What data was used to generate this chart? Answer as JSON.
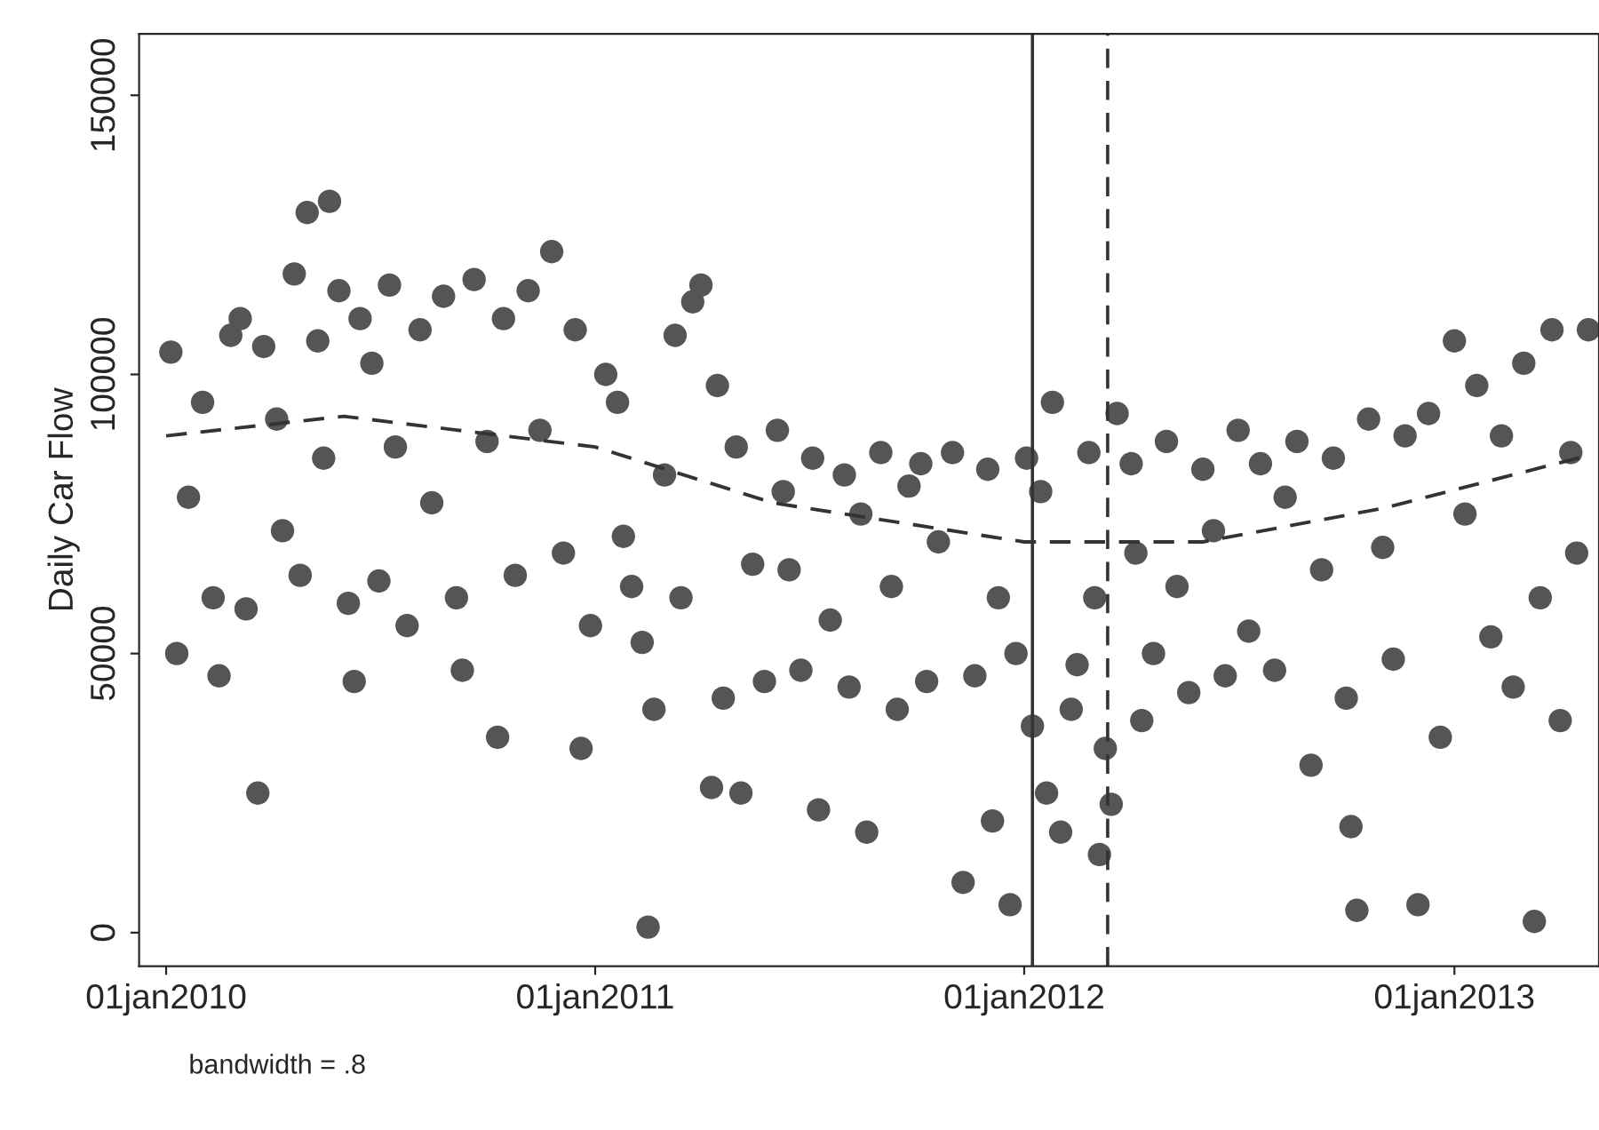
{
  "chart_data": {
    "type": "scatter",
    "ylabel": "Daily Car Flow",
    "annotations": [
      "bandwidth = .8"
    ],
    "xlim": [
      "2009-12-09",
      "2013-05-04"
    ],
    "ylim": [
      -6000,
      161000
    ],
    "xticks": [
      {
        "value": "2010-01-01",
        "label": "01jan2010"
      },
      {
        "value": "2011-01-01",
        "label": "01jan2011"
      },
      {
        "value": "2012-01-01",
        "label": "01jan2012"
      },
      {
        "value": "2013-01-01",
        "label": "01jan2013"
      }
    ],
    "yticks": [
      0,
      50000,
      100000,
      150000
    ],
    "grid": false,
    "legend": false,
    "ref_lines": [
      {
        "axis": "x",
        "value": "2012-01-08",
        "label": null,
        "color": "#333333",
        "line_style": "solid"
      },
      {
        "axis": "x",
        "value": "2012-03-12",
        "label": null,
        "color": "#333333",
        "line_style": "dashed"
      }
    ],
    "series": [
      {
        "color": "#555555",
        "marker": "circle",
        "x": [
          "2010-01-05",
          "2010-01-10",
          "2010-01-20",
          "2010-02-01",
          "2010-02-10",
          "2010-02-15",
          "2010-02-25",
          "2010-03-05",
          "2010-03-10",
          "2010-03-20",
          "2010-03-25",
          "2010-04-05",
          "2010-04-10",
          "2010-04-20",
          "2010-04-25",
          "2010-05-01",
          "2010-05-10",
          "2010-05-15",
          "2010-05-20",
          "2010-05-28",
          "2010-06-05",
          "2010-06-10",
          "2010-06-15",
          "2010-06-25",
          "2010-07-01",
          "2010-07-10",
          "2010-07-15",
          "2010-07-25",
          "2010-08-05",
          "2010-08-15",
          "2010-08-25",
          "2010-09-05",
          "2010-09-10",
          "2010-09-20",
          "2010-10-01",
          "2010-10-10",
          "2010-10-15",
          "2010-10-25",
          "2010-11-05",
          "2010-11-15",
          "2010-11-25",
          "2010-12-05",
          "2010-12-15",
          "2010-12-20",
          "2010-12-28",
          "2011-01-10",
          "2011-01-20",
          "2011-01-25",
          "2011-02-01",
          "2011-02-10",
          "2011-02-15",
          "2011-02-20",
          "2011-03-01",
          "2011-03-10",
          "2011-03-15",
          "2011-03-25",
          "2011-04-01",
          "2011-04-10",
          "2011-04-15",
          "2011-04-20",
          "2011-05-01",
          "2011-05-05",
          "2011-05-15",
          "2011-05-25",
          "2011-06-05",
          "2011-06-10",
          "2011-06-15",
          "2011-06-25",
          "2011-07-05",
          "2011-07-10",
          "2011-07-20",
          "2011-08-01",
          "2011-08-05",
          "2011-08-15",
          "2011-08-20",
          "2011-09-01",
          "2011-09-10",
          "2011-09-15",
          "2011-09-25",
          "2011-10-05",
          "2011-10-10",
          "2011-10-20",
          "2011-11-01",
          "2011-11-10",
          "2011-11-20",
          "2011-12-01",
          "2011-12-05",
          "2011-12-10",
          "2011-12-20",
          "2011-12-25",
          "2012-01-03",
          "2012-01-08",
          "2012-01-15",
          "2012-01-20",
          "2012-01-25",
          "2012-02-01",
          "2012-02-10",
          "2012-02-15",
          "2012-02-25",
          "2012-03-01",
          "2012-03-05",
          "2012-03-10",
          "2012-03-15",
          "2012-03-20",
          "2012-04-01",
          "2012-04-05",
          "2012-04-10",
          "2012-04-20",
          "2012-05-01",
          "2012-05-10",
          "2012-05-20",
          "2012-06-01",
          "2012-06-10",
          "2012-06-20",
          "2012-07-01",
          "2012-07-10",
          "2012-07-20",
          "2012-08-01",
          "2012-08-10",
          "2012-08-20",
          "2012-09-01",
          "2012-09-10",
          "2012-09-20",
          "2012-10-01",
          "2012-10-05",
          "2012-10-10",
          "2012-10-20",
          "2012-11-01",
          "2012-11-10",
          "2012-11-20",
          "2012-12-01",
          "2012-12-10",
          "2012-12-20",
          "2013-01-01",
          "2013-01-10",
          "2013-01-20",
          "2013-02-01",
          "2013-02-10",
          "2013-02-20",
          "2013-03-01",
          "2013-03-10",
          "2013-03-15",
          "2013-03-25",
          "2013-04-01",
          "2013-04-10",
          "2013-04-15",
          "2013-04-25"
        ],
        "values": [
          104000,
          50000,
          78000,
          95000,
          60000,
          46000,
          107000,
          110000,
          58000,
          25000,
          105000,
          92000,
          72000,
          118000,
          64000,
          129000,
          106000,
          85000,
          131000,
          115000,
          59000,
          45000,
          110000,
          102000,
          63000,
          116000,
          87000,
          55000,
          108000,
          77000,
          114000,
          60000,
          47000,
          117000,
          88000,
          35000,
          110000,
          64000,
          115000,
          90000,
          122000,
          68000,
          108000,
          33000,
          55000,
          100000,
          95000,
          71000,
          62000,
          52000,
          1000,
          40000,
          82000,
          107000,
          60000,
          113000,
          116000,
          26000,
          98000,
          42000,
          87000,
          25000,
          66000,
          45000,
          90000,
          79000,
          65000,
          47000,
          85000,
          22000,
          56000,
          82000,
          44000,
          75000,
          18000,
          86000,
          62000,
          40000,
          80000,
          84000,
          45000,
          70000,
          86000,
          9000,
          46000,
          83000,
          20000,
          60000,
          5000,
          50000,
          85000,
          37000,
          79000,
          25000,
          95000,
          18000,
          40000,
          48000,
          86000,
          60000,
          14000,
          33000,
          23000,
          93000,
          84000,
          68000,
          38000,
          50000,
          88000,
          62000,
          43000,
          83000,
          72000,
          46000,
          90000,
          54000,
          84000,
          47000,
          78000,
          88000,
          30000,
          65000,
          85000,
          42000,
          19000,
          4000,
          92000,
          69000,
          49000,
          89000,
          5000,
          93000,
          35000,
          106000,
          75000,
          98000,
          53000,
          89000,
          44000,
          102000,
          2000,
          60000,
          108000,
          38000,
          86000,
          68000,
          108000
        ]
      },
      {
        "type": "line",
        "color": "#333333",
        "marker": "none",
        "line_style": "dashed",
        "x": [
          "2010-01-01",
          "2010-06-01",
          "2011-01-01",
          "2011-06-01",
          "2012-01-01",
          "2012-06-01",
          "2012-11-01",
          "2013-04-25"
        ],
        "values": [
          89000,
          92500,
          87000,
          77000,
          70000,
          70000,
          76000,
          85500
        ]
      }
    ]
  }
}
